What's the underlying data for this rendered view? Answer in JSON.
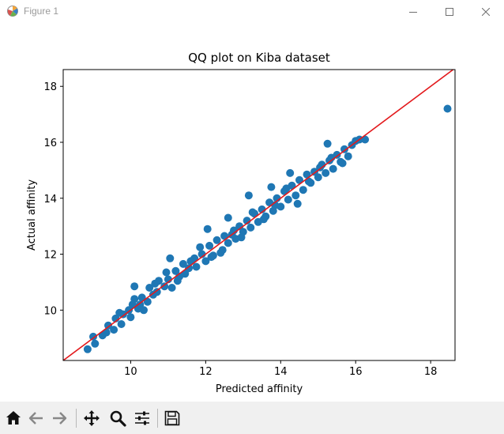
{
  "window": {
    "title": "Figure 1",
    "controls": [
      "minimize",
      "maximize",
      "close"
    ]
  },
  "toolbar": {
    "buttons": [
      {
        "name": "home",
        "icon": "home-icon"
      },
      {
        "name": "back",
        "icon": "arrow-left-icon"
      },
      {
        "name": "forward",
        "icon": "arrow-right-icon"
      },
      {
        "name": "pan",
        "icon": "move-icon"
      },
      {
        "name": "zoom",
        "icon": "magnifier-icon"
      },
      {
        "name": "configure-subplots",
        "icon": "sliders-icon"
      },
      {
        "name": "save",
        "icon": "floppy-disk-icon"
      }
    ]
  },
  "chart_data": {
    "type": "scatter",
    "title": "QQ plot on Kiba dataset",
    "xlabel": "Predicted affinity",
    "ylabel": "Actual affinity",
    "xlim": [
      8.2,
      18.65
    ],
    "ylim": [
      8.2,
      18.6
    ],
    "xticks": [
      10,
      12,
      14,
      16,
      18
    ],
    "yticks": [
      10,
      12,
      14,
      16,
      18
    ],
    "grid": false,
    "legend": "none",
    "colors": {
      "points": "#1f77b4",
      "reference_line": "#e3191c"
    },
    "reference_line": {
      "x": [
        8.2,
        18.65
      ],
      "y": [
        8.2,
        18.65
      ]
    },
    "points": {
      "x": [
        8.85,
        9.0,
        9.05,
        9.25,
        9.4,
        9.55,
        9.6,
        9.75,
        9.8,
        9.95,
        10.0,
        10.1,
        10.2,
        10.25,
        10.3,
        10.45,
        10.5,
        10.6,
        10.7,
        10.75,
        10.9,
        11.0,
        11.1,
        11.2,
        11.25,
        11.4,
        11.45,
        11.55,
        11.7,
        11.75,
        11.9,
        12.0,
        12.1,
        12.2,
        12.3,
        12.45,
        12.5,
        12.6,
        12.75,
        12.8,
        12.9,
        13.0,
        13.1,
        13.2,
        13.3,
        13.4,
        13.5,
        13.6,
        13.7,
        13.8,
        13.9,
        14.0,
        14.1,
        14.2,
        14.3,
        14.4,
        14.5,
        14.6,
        14.7,
        14.8,
        14.9,
        15.0,
        15.1,
        15.2,
        15.3,
        15.4,
        15.5,
        15.6,
        15.7,
        15.8,
        15.9,
        16.0,
        16.1,
        16.25,
        9.35,
        9.7,
        10.05,
        10.35,
        10.1,
        10.65,
        10.95,
        11.3,
        11.6,
        11.05,
        11.85,
        12.15,
        12.4,
        12.05,
        12.7,
        12.95,
        12.6,
        13.25,
        13.55,
        13.15,
        13.85,
        14.15,
        13.75,
        14.45,
        14.75,
        14.25,
        15.05,
        15.35,
        15.65,
        15.25,
        18.45
      ],
      "y": [
        8.6,
        9.05,
        8.8,
        9.1,
        9.45,
        9.3,
        9.7,
        9.5,
        9.85,
        10.0,
        9.75,
        10.4,
        10.05,
        10.2,
        10.45,
        10.3,
        10.8,
        10.55,
        10.65,
        11.05,
        10.85,
        11.1,
        10.8,
        11.4,
        11.05,
        11.65,
        11.3,
        11.5,
        11.85,
        11.55,
        12.0,
        11.75,
        12.3,
        11.95,
        12.5,
        12.15,
        12.65,
        12.4,
        12.85,
        12.55,
        13.0,
        12.8,
        13.2,
        12.95,
        13.45,
        13.15,
        13.6,
        13.35,
        13.85,
        13.55,
        14.0,
        13.7,
        14.25,
        13.95,
        14.45,
        14.1,
        14.65,
        14.3,
        14.85,
        14.55,
        14.95,
        14.75,
        15.2,
        14.9,
        15.35,
        15.05,
        15.55,
        15.3,
        15.75,
        15.5,
        15.9,
        16.05,
        16.1,
        16.1,
        9.2,
        9.9,
        10.2,
        10.0,
        10.85,
        10.95,
        11.35,
        11.2,
        11.75,
        11.85,
        12.25,
        11.9,
        12.05,
        12.9,
        12.7,
        12.6,
        13.3,
        13.5,
        13.25,
        14.1,
        13.75,
        14.35,
        14.4,
        13.8,
        14.6,
        14.9,
        15.1,
        15.45,
        15.25,
        15.95,
        17.2
      ]
    }
  }
}
